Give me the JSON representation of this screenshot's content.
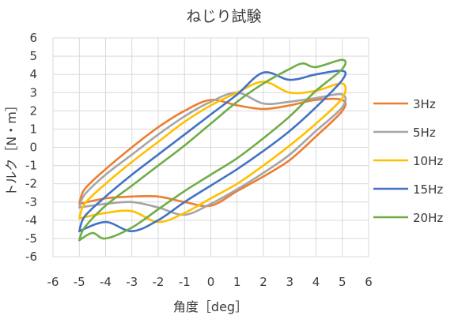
{
  "chart_data": {
    "type": "line",
    "title": "ねじり試験",
    "xlabel": "角度［deg］",
    "ylabel": "トルク［N・m］",
    "xlim": [
      -6,
      6
    ],
    "ylim": [
      -6,
      6
    ],
    "xticks": [
      "-6",
      "-5",
      "-4",
      "-3",
      "-2",
      "-1",
      "0",
      "1",
      "2",
      "3",
      "4",
      "5",
      "6"
    ],
    "yticks": [
      "-6",
      "-5",
      "-4",
      "-3",
      "-2",
      "-1",
      "0",
      "1",
      "2",
      "3",
      "4",
      "5",
      "6"
    ],
    "grid": true,
    "legend_position": "right",
    "series": [
      {
        "name": "3Hz",
        "color": "#ED7D31",
        "points": [
          [
            -5,
            -3.1
          ],
          [
            -4,
            -2.8
          ],
          [
            -3,
            -2.7
          ],
          [
            -2,
            -2.7
          ],
          [
            -1,
            -3.0
          ],
          [
            0,
            -3.2
          ],
          [
            1,
            -2.4
          ],
          [
            2,
            -1.6
          ],
          [
            3,
            -0.7
          ],
          [
            4,
            0.6
          ],
          [
            5,
            2.0
          ],
          [
            5,
            2.6
          ],
          [
            4,
            2.6
          ],
          [
            3,
            2.3
          ],
          [
            2,
            2.1
          ],
          [
            1,
            2.3
          ],
          [
            0,
            2.6
          ],
          [
            -1,
            2.0
          ],
          [
            -2,
            1.1
          ],
          [
            -3,
            0.0
          ],
          [
            -4,
            -1.2
          ],
          [
            -4.8,
            -2.3
          ],
          [
            -5,
            -3.1
          ]
        ]
      },
      {
        "name": "5Hz",
        "color": "#A5A5A5",
        "points": [
          [
            -5,
            -3.3
          ],
          [
            -4,
            -3.1
          ],
          [
            -3,
            -3.0
          ],
          [
            -2,
            -3.3
          ],
          [
            -1,
            -3.7
          ],
          [
            0,
            -3.1
          ],
          [
            1,
            -2.3
          ],
          [
            2,
            -1.4
          ],
          [
            3,
            -0.4
          ],
          [
            4,
            0.9
          ],
          [
            5,
            2.2
          ],
          [
            5,
            2.9
          ],
          [
            4,
            2.7
          ],
          [
            3,
            2.5
          ],
          [
            2,
            2.4
          ],
          [
            1,
            3.0
          ],
          [
            0,
            2.5
          ],
          [
            -1,
            1.7
          ],
          [
            -2,
            0.7
          ],
          [
            -3,
            -0.4
          ],
          [
            -4,
            -1.5
          ],
          [
            -4.8,
            -2.6
          ],
          [
            -5,
            -3.3
          ]
        ]
      },
      {
        "name": "10Hz",
        "color": "#FFC000",
        "points": [
          [
            -5,
            -3.9
          ],
          [
            -4,
            -3.6
          ],
          [
            -3,
            -3.5
          ],
          [
            -2,
            -4.1
          ],
          [
            -1,
            -3.6
          ],
          [
            0,
            -2.8
          ],
          [
            1,
            -2.0
          ],
          [
            2,
            -1.0
          ],
          [
            3,
            0.1
          ],
          [
            4,
            1.3
          ],
          [
            5,
            2.7
          ],
          [
            5,
            3.5
          ],
          [
            4,
            3.1
          ],
          [
            3,
            3.0
          ],
          [
            2,
            3.6
          ],
          [
            1,
            3.0
          ],
          [
            0,
            2.3
          ],
          [
            -1,
            1.4
          ],
          [
            -2,
            0.3
          ],
          [
            -3,
            -0.8
          ],
          [
            -4,
            -2.0
          ],
          [
            -4.8,
            -3.1
          ],
          [
            -5,
            -3.9
          ]
        ]
      },
      {
        "name": "15Hz",
        "color": "#4472C4",
        "points": [
          [
            -5,
            -4.6
          ],
          [
            -4,
            -4.1
          ],
          [
            -3,
            -4.6
          ],
          [
            -2,
            -4.0
          ],
          [
            -1,
            -3.0
          ],
          [
            0,
            -2.1
          ],
          [
            1,
            -1.2
          ],
          [
            2,
            -0.2
          ],
          [
            3,
            0.9
          ],
          [
            4,
            2.2
          ],
          [
            5,
            3.7
          ],
          [
            5,
            4.2
          ],
          [
            4,
            4.0
          ],
          [
            3,
            3.7
          ],
          [
            2,
            4.1
          ],
          [
            1,
            2.9
          ],
          [
            0,
            1.8
          ],
          [
            -1,
            0.7
          ],
          [
            -2,
            -0.4
          ],
          [
            -3,
            -1.5
          ],
          [
            -4,
            -2.7
          ],
          [
            -4.8,
            -3.8
          ],
          [
            -5,
            -4.6
          ]
        ]
      },
      {
        "name": "20Hz",
        "color": "#70AD47",
        "points": [
          [
            -5,
            -5.1
          ],
          [
            -4.5,
            -4.7
          ],
          [
            -4,
            -5.0
          ],
          [
            -3,
            -4.4
          ],
          [
            -2,
            -3.4
          ],
          [
            -1,
            -2.4
          ],
          [
            0,
            -1.5
          ],
          [
            1,
            -0.6
          ],
          [
            2,
            0.5
          ],
          [
            3,
            1.7
          ],
          [
            4,
            3.1
          ],
          [
            5,
            4.3
          ],
          [
            5,
            4.8
          ],
          [
            4,
            4.4
          ],
          [
            3.5,
            4.6
          ],
          [
            3,
            4.3
          ],
          [
            2,
            3.5
          ],
          [
            1,
            2.5
          ],
          [
            0,
            1.3
          ],
          [
            -1,
            0.1
          ],
          [
            -2,
            -1.0
          ],
          [
            -3,
            -2.1
          ],
          [
            -4,
            -3.2
          ],
          [
            -4.8,
            -4.4
          ],
          [
            -5,
            -5.1
          ]
        ]
      }
    ]
  }
}
